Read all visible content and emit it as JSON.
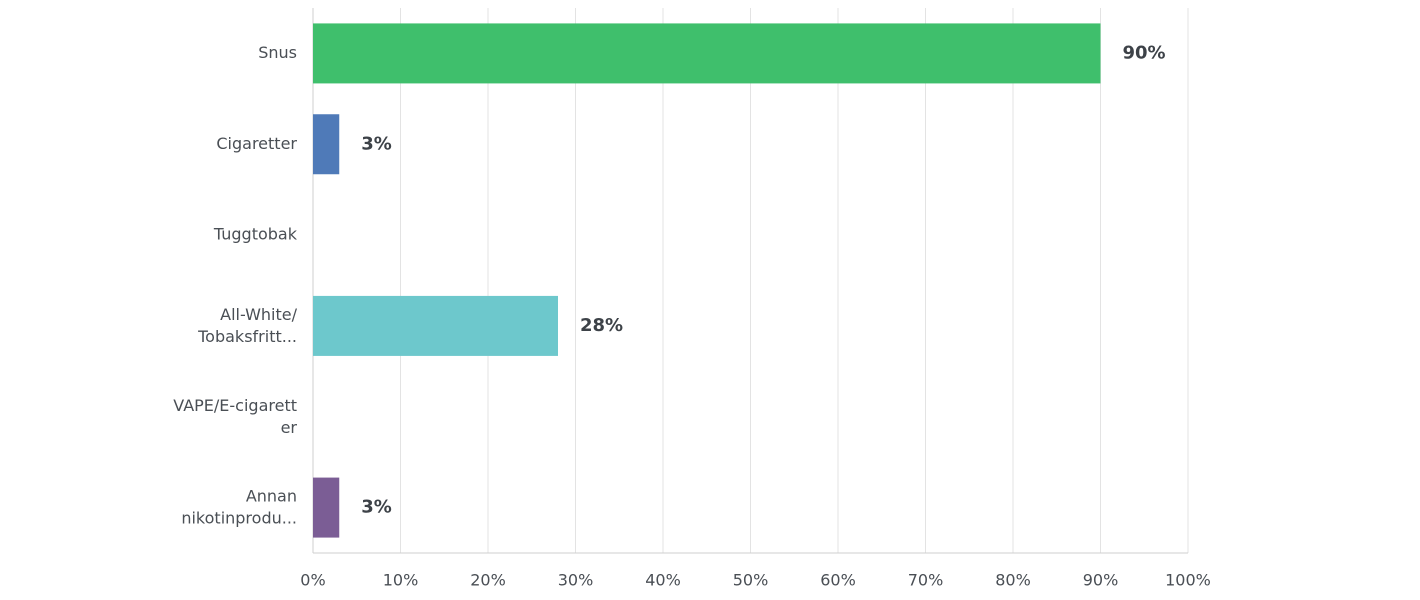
{
  "chart_data": {
    "type": "barh",
    "categories": [
      "Snus",
      "Cigaretter",
      "Tuggtobak",
      "All-White/\nTobaksfritt...",
      "VAPE/E-cigarett\ner",
      "Annan\nnikotinprodu..."
    ],
    "values": [
      90,
      3,
      0,
      28,
      0,
      3
    ],
    "value_labels": [
      "90%",
      "3%",
      null,
      "28%",
      null,
      "3%"
    ],
    "colors": [
      "#3fbf6c",
      "#4f7ab8",
      "#4f7ab8",
      "#6dc8cc",
      "#e0e0e0",
      "#7b5d95"
    ],
    "xlim": [
      0,
      100
    ],
    "xticks": [
      {
        "value": 0,
        "label": "0%"
      },
      {
        "value": 10,
        "label": "10%"
      },
      {
        "value": 20,
        "label": "20%"
      },
      {
        "value": 30,
        "label": "30%"
      },
      {
        "value": 40,
        "label": "40%"
      },
      {
        "value": 50,
        "label": "50%"
      },
      {
        "value": 60,
        "label": "60%"
      },
      {
        "value": 70,
        "label": "70%"
      },
      {
        "value": 80,
        "label": "80%"
      },
      {
        "value": 90,
        "label": "90%"
      },
      {
        "value": 100,
        "label": "100%"
      }
    ],
    "grid": true
  }
}
